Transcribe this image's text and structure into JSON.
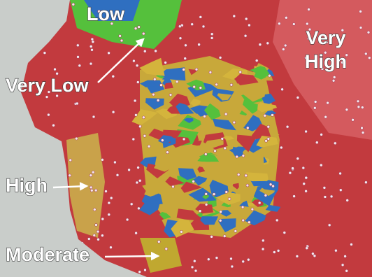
{
  "labels": [
    {
      "text": "Low"
    },
    {
      "text": "Very Low"
    },
    {
      "lines": [
        "Very",
        "High"
      ]
    },
    {
      "text": "High"
    },
    {
      "text": "Moderate"
    }
  ]
}
